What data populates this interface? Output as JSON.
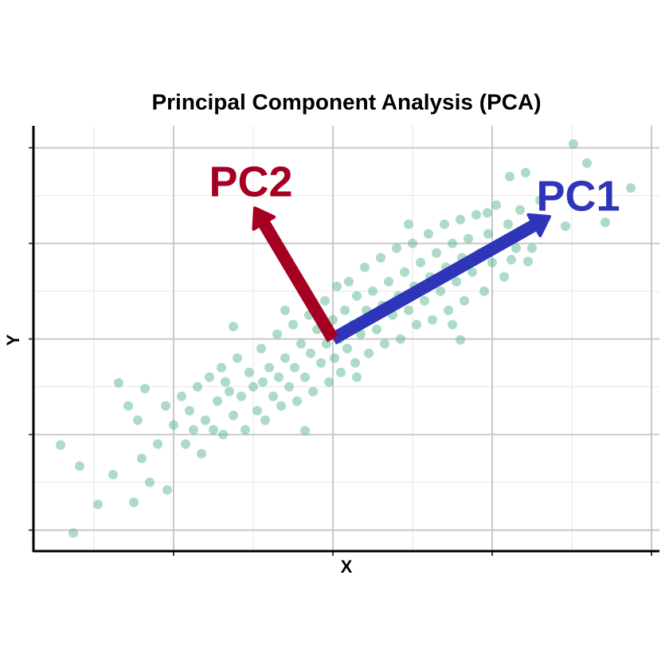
{
  "chart_data": {
    "type": "scatter",
    "title": "Principal Component Analysis (PCA)",
    "x_label": "X",
    "y_label": "Y",
    "xlim": [
      -3.76,
      4.1
    ],
    "ylim": [
      -2.22,
      2.23
    ],
    "xticks": [
      -2,
      0,
      2,
      4
    ],
    "yticks": [
      -2,
      -1,
      0,
      1,
      2
    ],
    "xticks_minor": [
      -3,
      -1,
      1,
      3
    ],
    "yticks_minor": [
      -1.5,
      -0.5,
      0.5,
      1.5
    ],
    "grid": true,
    "color": "#5bb88f",
    "x": [
      -3.42,
      -3.18,
      -3.26,
      -2.95,
      -2.76,
      -2.69,
      -2.5,
      -2.3,
      -2.08,
      3.02,
      3.19,
      3.74,
      2.42,
      2.22,
      2.92,
      3.42,
      2.45,
      2.24,
      1.94,
      1.6,
      -0.35,
      -1.25,
      -2.57,
      -2.36,
      -2.0,
      -1.9,
      -1.85,
      -1.8,
      -1.7,
      -1.65,
      -1.6,
      -1.55,
      -1.5,
      -1.45,
      -1.4,
      -1.38,
      -1.3,
      -1.25,
      -1.2,
      -1.15,
      -1.1,
      -1.05,
      -1.0,
      -0.95,
      -0.9,
      -0.88,
      -0.85,
      -0.8,
      -0.75,
      -0.7,
      -0.68,
      -0.65,
      -0.6,
      -0.55,
      -0.5,
      -0.48,
      -0.45,
      -0.4,
      -0.35,
      -0.3,
      -0.28,
      -0.25,
      -0.2,
      -0.15,
      -0.1,
      -0.08,
      -0.05,
      0.0,
      0.02,
      0.05,
      0.08,
      0.1,
      0.15,
      0.18,
      0.2,
      0.25,
      0.28,
      0.3,
      0.35,
      0.4,
      0.42,
      0.45,
      0.5,
      0.55,
      0.6,
      0.62,
      0.65,
      0.7,
      0.75,
      0.8,
      0.82,
      0.85,
      0.9,
      0.95,
      1.0,
      1.02,
      1.05,
      1.1,
      1.15,
      1.2,
      1.22,
      1.25,
      1.3,
      1.35,
      1.4,
      1.42,
      1.45,
      1.5,
      1.55,
      1.6,
      1.62,
      1.65,
      1.7,
      1.75,
      1.8,
      1.85,
      1.9,
      1.95,
      2.0,
      2.05,
      2.1,
      2.15,
      2.2,
      2.3,
      2.35,
      -1.75,
      -1.35,
      -0.6,
      0.3,
      0.95,
      1.5,
      -2.2,
      -2.1,
      -2.4,
      -2.45,
      2.6,
      2.5
    ],
    "y": [
      -1.11,
      -1.33,
      -2.03,
      -1.73,
      -1.42,
      -0.46,
      -1.71,
      -1.5,
      -1.58,
      2.04,
      1.84,
      1.58,
      1.74,
      1.7,
      1.18,
      1.22,
      0.81,
      0.83,
      1.32,
      -0.01,
      -0.96,
      0.13,
      -0.7,
      -0.52,
      -0.9,
      -0.6,
      -1.1,
      -0.75,
      -0.5,
      -1.2,
      -0.85,
      -0.4,
      -0.95,
      -0.65,
      -0.3,
      -1.0,
      -0.55,
      -0.8,
      -0.2,
      -0.6,
      -0.95,
      -0.35,
      -0.5,
      -0.75,
      -0.1,
      -0.45,
      -0.85,
      -0.3,
      -0.6,
      0.05,
      -0.4,
      -0.7,
      -0.2,
      -0.5,
      0.15,
      -0.3,
      -0.65,
      -0.05,
      -0.4,
      0.25,
      -0.15,
      -0.55,
      0.1,
      -0.25,
      0.4,
      -0.05,
      -0.45,
      0.2,
      -0.2,
      0.55,
      0.0,
      -0.35,
      0.3,
      -0.1,
      0.6,
      0.15,
      -0.25,
      0.45,
      0.05,
      0.75,
      0.3,
      -0.15,
      0.5,
      0.1,
      0.85,
      0.35,
      -0.05,
      0.6,
      0.25,
      0.95,
      0.45,
      0.0,
      0.7,
      0.3,
      1.0,
      0.55,
      0.15,
      0.8,
      0.4,
      1.1,
      0.65,
      0.2,
      0.9,
      0.5,
      1.2,
      0.75,
      0.3,
      1.0,
      0.6,
      1.25,
      0.85,
      0.4,
      1.05,
      0.7,
      1.3,
      0.9,
      0.5,
      1.1,
      0.8,
      1.4,
      1.0,
      0.65,
      1.2,
      0.95,
      1.35,
      -0.95,
      -0.45,
      0.3,
      -0.4,
      1.2,
      0.15,
      -1.1,
      -0.7,
      -1.25,
      -0.85,
      1.45,
      0.95
    ],
    "arrows": [
      {
        "label": "PC1",
        "color": "#2f35b8",
        "x": [
          0,
          2.72
        ],
        "y": [
          0,
          1.28
        ]
      },
      {
        "label": "PC2",
        "color": "#a50021",
        "x": [
          0,
          -0.98
        ],
        "y": [
          0,
          1.37
        ]
      }
    ]
  }
}
